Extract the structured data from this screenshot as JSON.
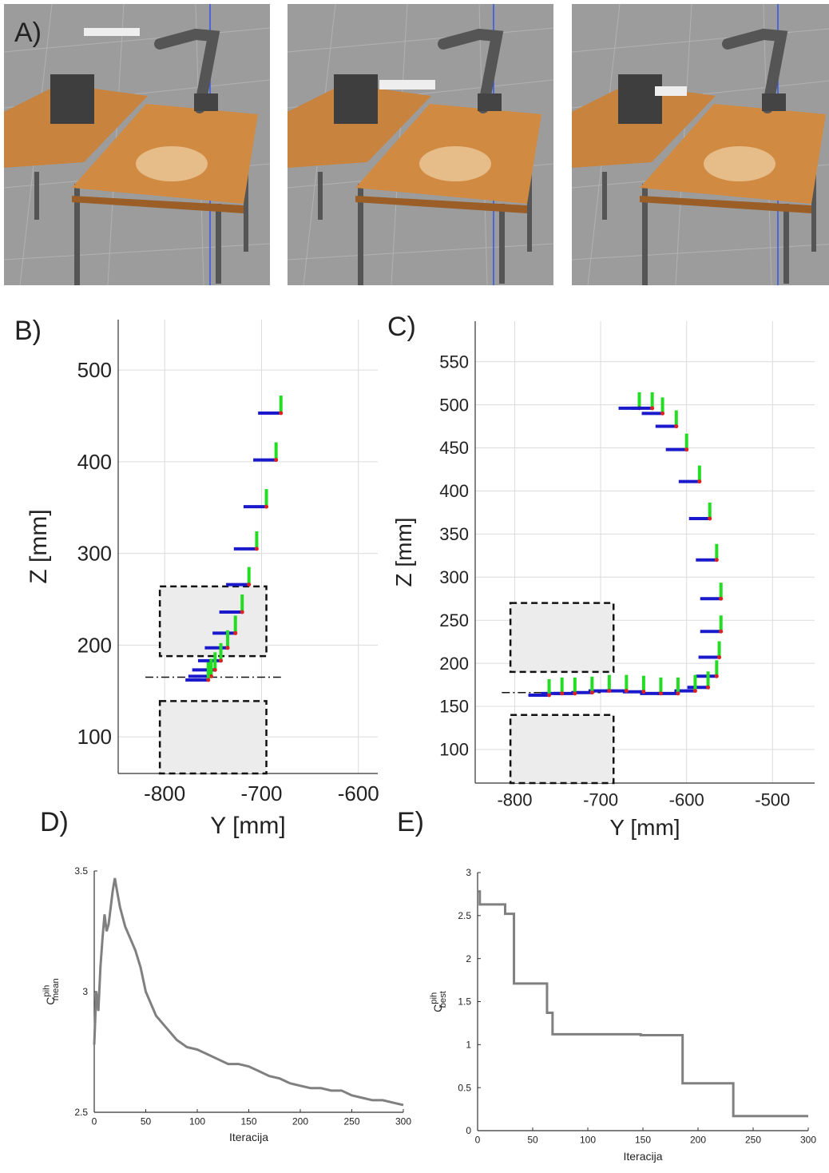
{
  "panel_a": {
    "label": "A)"
  },
  "chart_data": [
    {
      "type": "trajectory",
      "label": "B)",
      "xlabel": "Y [mm]",
      "ylabel": "Z [mm]",
      "xlim": [
        -848,
        -580
      ],
      "ylim": [
        60,
        555
      ],
      "xticks": [
        -800,
        -700,
        -600
      ],
      "yticks": [
        100,
        200,
        300,
        400,
        500
      ],
      "grid": true,
      "frame_colors": [
        "#1a1acc",
        "#22dd22",
        "#dd2222"
      ],
      "series": [
        {
          "x": [
            -680,
            -685,
            -695,
            -705,
            -713,
            -720,
            -727,
            -735,
            -742,
            -748,
            -752,
            -755
          ],
          "values": [
            453,
            402,
            351,
            305,
            266,
            236,
            213,
            197,
            183,
            173,
            166,
            162
          ]
        }
      ],
      "obstacles": [
        {
          "x": [
            -805,
            -695
          ],
          "y": [
            188,
            264
          ]
        },
        {
          "x": [
            -805,
            -695
          ],
          "y": [
            60,
            139
          ]
        }
      ],
      "reference": {
        "x": [
          -820,
          -680
        ],
        "y": 165
      }
    },
    {
      "type": "trajectory",
      "label": "C)",
      "xlabel": "Y [mm]",
      "ylabel": "Z [mm]",
      "xlim": [
        -846,
        -451
      ],
      "ylim": [
        61,
        597
      ],
      "xticks": [
        -800,
        -700,
        -600,
        -500
      ],
      "yticks": [
        100,
        150,
        200,
        250,
        300,
        350,
        400,
        450,
        500,
        550
      ],
      "grid": true,
      "frame_colors": [
        "#1a1acc",
        "#22dd22",
        "#dd2222"
      ],
      "series": [
        {
          "x": [
            -655,
            -640,
            -628,
            -612,
            -600,
            -585,
            -573,
            -565,
            -560,
            -560,
            -562,
            -565,
            -575,
            -590,
            -610,
            -630,
            -650,
            -670,
            -690,
            -710,
            -730,
            -745,
            -760
          ],
          "values": [
            496,
            496,
            490,
            475,
            448,
            411,
            368,
            320,
            275,
            237,
            207,
            185,
            172,
            168,
            165,
            165,
            167,
            168,
            168,
            166,
            165,
            165,
            163
          ]
        }
      ],
      "obstacles": [
        {
          "x": [
            -805,
            -685
          ],
          "y": [
            190,
            270
          ]
        },
        {
          "x": [
            -805,
            -685
          ],
          "y": [
            61,
            140
          ]
        }
      ],
      "reference": {
        "x": [
          -815,
          -700
        ],
        "y": 166
      }
    },
    {
      "type": "line",
      "label": "D)",
      "xlabel": "Iteracija",
      "ylabel": "C",
      "ylabel_sup": "pih",
      "ylabel_sub": "mean",
      "xlim": [
        0,
        300
      ],
      "ylim": [
        2.5,
        3.5
      ],
      "xticks": [
        0,
        50,
        100,
        150,
        200,
        250,
        300
      ],
      "yticks": [
        2.5,
        3,
        3.5
      ],
      "grid": false,
      "color": "#808080",
      "x": [
        0,
        2,
        4,
        6,
        8,
        10,
        12,
        14,
        16,
        18,
        20,
        22,
        25,
        30,
        35,
        40,
        45,
        50,
        60,
        70,
        80,
        90,
        100,
        110,
        120,
        130,
        140,
        150,
        160,
        170,
        180,
        190,
        200,
        210,
        220,
        230,
        240,
        250,
        260,
        270,
        280,
        290,
        300
      ],
      "values": [
        2.78,
        3.0,
        2.92,
        3.1,
        3.22,
        3.32,
        3.25,
        3.28,
        3.35,
        3.42,
        3.47,
        3.42,
        3.35,
        3.27,
        3.22,
        3.17,
        3.1,
        3.0,
        2.9,
        2.85,
        2.8,
        2.77,
        2.76,
        2.74,
        2.72,
        2.7,
        2.7,
        2.69,
        2.67,
        2.65,
        2.64,
        2.62,
        2.61,
        2.6,
        2.6,
        2.59,
        2.59,
        2.57,
        2.56,
        2.55,
        2.55,
        2.54,
        2.53
      ]
    },
    {
      "type": "step",
      "label": "E)",
      "xlabel": "Iteracija",
      "ylabel": "C",
      "ylabel_sup": "pih",
      "ylabel_sub": "best",
      "xlim": [
        0,
        300
      ],
      "ylim": [
        0,
        3
      ],
      "xticks": [
        0,
        50,
        100,
        150,
        200,
        250,
        300
      ],
      "yticks": [
        0,
        0.5,
        1,
        1.5,
        2,
        2.5,
        3
      ],
      "grid": false,
      "color": "#808080",
      "x": [
        0,
        2,
        25,
        33,
        63,
        68,
        148,
        186,
        232,
        300
      ],
      "values": [
        2.78,
        2.63,
        2.52,
        1.71,
        1.37,
        1.12,
        1.11,
        0.55,
        0.17,
        0.17
      ]
    }
  ]
}
